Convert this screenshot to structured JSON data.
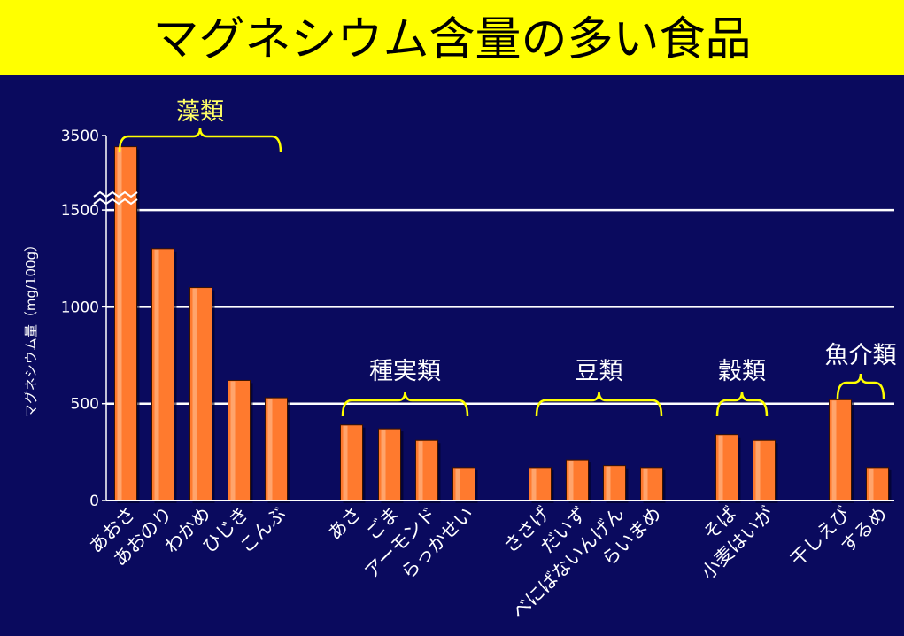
{
  "title": "マグネシウム含量の多い食品",
  "colors": {
    "background": "#0a0a5e",
    "title_bg": "#ffff00",
    "bar": "#ff7a2e",
    "bar_highlight": "#ffc7a0",
    "grid": "#ffffff",
    "group_label": "#ffff66",
    "brace": "#ffff00"
  },
  "chart_data": {
    "type": "bar",
    "ylabel": "マグネシウム量（mg/100g）",
    "y_ticks": [
      "0",
      "500",
      "1000",
      "1500",
      "3500"
    ],
    "ylim": [
      0,
      3500
    ],
    "axis_break": {
      "between": [
        1500,
        3500
      ]
    },
    "grid": true,
    "categories": [
      "あおさ",
      "あおのり",
      "わかめ",
      "ひじき",
      "こんぶ",
      "あさ",
      "ごま",
      "アーモンド",
      "らっかせい",
      "ささげ",
      "だいず",
      "べにばないんげん",
      "らいまめ",
      "そば",
      "小麦はいが",
      "干しえび",
      "するめ"
    ],
    "values": [
      3200,
      1300,
      1100,
      620,
      530,
      390,
      370,
      310,
      170,
      170,
      210,
      180,
      170,
      340,
      310,
      520,
      170
    ],
    "groups": [
      {
        "label": "藻類",
        "categories": [
          "あおさ",
          "あおのり",
          "わかめ",
          "ひじき",
          "こんぶ"
        ]
      },
      {
        "label": "種実類",
        "categories": [
          "あさ",
          "ごま",
          "アーモンド",
          "らっかせい"
        ]
      },
      {
        "label": "豆類",
        "categories": [
          "ささげ",
          "だいず",
          "べにばないんげん",
          "らいまめ"
        ]
      },
      {
        "label": "穀類",
        "categories": [
          "そば",
          "小麦はいが"
        ]
      },
      {
        "label": "魚介類",
        "categories": [
          "干しえび",
          "するめ"
        ]
      }
    ]
  }
}
